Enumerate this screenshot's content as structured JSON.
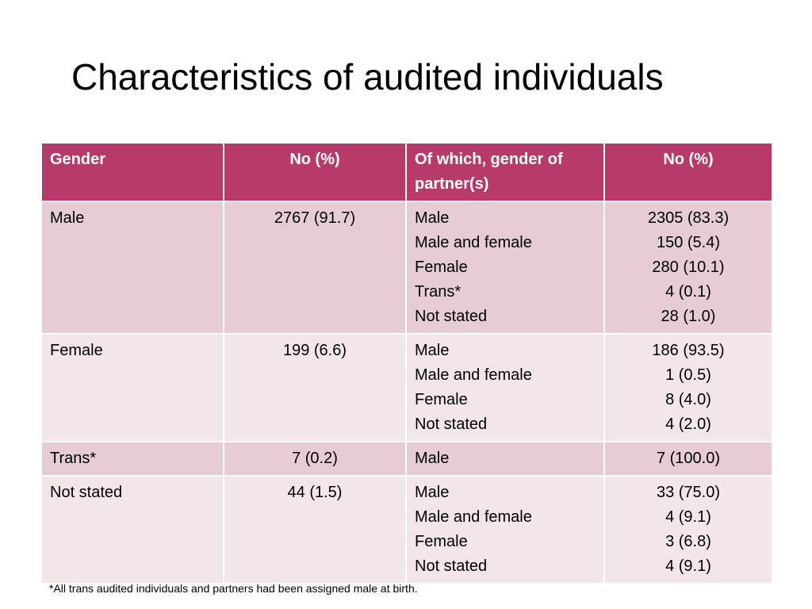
{
  "title": "Characteristics of audited individuals",
  "table": {
    "headers": [
      "Gender",
      "No (%)",
      "Of which, gender of partner(s)",
      "No (%)"
    ],
    "rows": [
      {
        "gender": "Male",
        "count": "2767 (91.7)",
        "partners": [
          "Male",
          "Male and female",
          "Female",
          "Trans*",
          "Not stated"
        ],
        "partner_counts": [
          "2305 (83.3)",
          "150 (5.4)",
          "280 (10.1)",
          "4 (0.1)",
          "28 (1.0)"
        ]
      },
      {
        "gender": "Female",
        "count": "199 (6.6)",
        "partners": [
          "Male",
          "Male and female",
          "Female",
          "Not stated"
        ],
        "partner_counts": [
          "186 (93.5)",
          "1 (0.5)",
          "8 (4.0)",
          "4 (2.0)"
        ]
      },
      {
        "gender": "Trans*",
        "count": "7 (0.2)",
        "partners": [
          "Male"
        ],
        "partner_counts": [
          "7 (100.0)"
        ]
      },
      {
        "gender": "Not stated",
        "count": "44 (1.5)",
        "partners": [
          "Male",
          "Male and female",
          "Female",
          "Not stated"
        ],
        "partner_counts": [
          "33 (75.0)",
          "4 (9.1)",
          "3 (6.8)",
          "4 (9.1)"
        ]
      }
    ]
  },
  "footnote": "*All trans audited individuals and partners had been assigned male at birth.",
  "colors": {
    "header_bg": "#b83a68",
    "row_odd_bg": "#e6ccd3",
    "row_even_bg": "#f2e6e9"
  }
}
